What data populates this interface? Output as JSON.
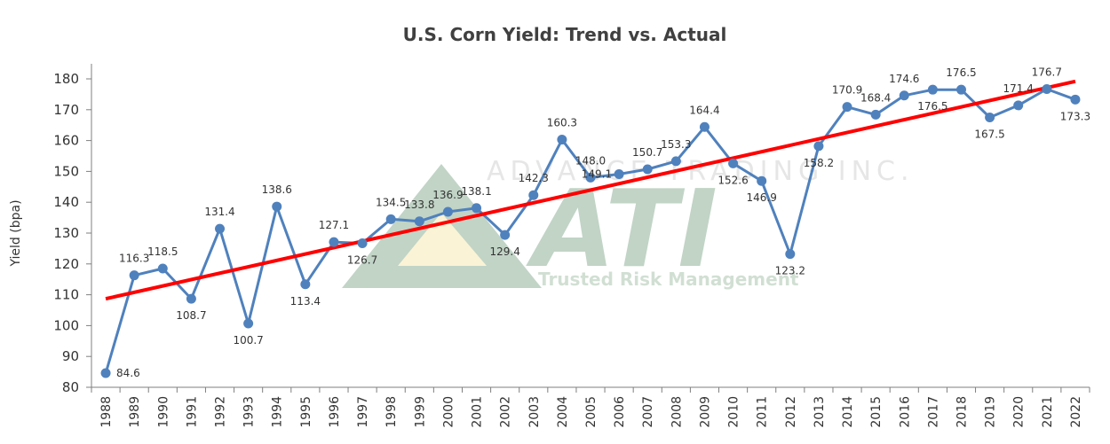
{
  "chart_data": {
    "type": "line",
    "title": "U.S. Corn Yield: Trend vs. Actual",
    "xlabel": "",
    "ylabel": "Yield (bpa)",
    "ylim": [
      80,
      180
    ],
    "yticks": [
      "80",
      "90",
      "100",
      "110",
      "120",
      "130",
      "140",
      "150",
      "160",
      "170",
      "180"
    ],
    "categories": [
      "1988",
      "1989",
      "1990",
      "1991",
      "1992",
      "1993",
      "1994",
      "1995",
      "1996",
      "1997",
      "1998",
      "1999",
      "2000",
      "2001",
      "2002",
      "2003",
      "2004",
      "2005",
      "2006",
      "2007",
      "2008",
      "2009",
      "2010",
      "2011",
      "2012",
      "2013",
      "2014",
      "2015",
      "2016",
      "2017",
      "2018",
      "2019",
      "2020",
      "2021",
      "2022"
    ],
    "series": [
      {
        "name": "Actual",
        "color": "#4f81bd",
        "values": [
          84.6,
          116.3,
          118.5,
          108.7,
          131.4,
          100.7,
          138.6,
          113.4,
          127.1,
          126.7,
          134.5,
          133.8,
          136.9,
          138.1,
          129.4,
          142.3,
          160.3,
          148.0,
          149.1,
          150.7,
          153.3,
          164.4,
          152.6,
          146.9,
          123.2,
          158.2,
          170.9,
          168.4,
          174.6,
          176.5,
          176.5,
          167.5,
          171.4,
          176.7,
          173.3
        ],
        "labels": [
          "84.6",
          "116.3",
          "118.5",
          "108.7",
          "131.4",
          "100.7",
          "138.6",
          "113.4",
          "127.1",
          "126.7",
          "134.5",
          "133.8",
          "136.9",
          "138.1",
          "129.4",
          "142.3",
          "160.3",
          "148.0",
          "149.1",
          "150.7",
          "153.3",
          "164.4",
          "152.6",
          "146.9",
          "123.2",
          "158.2",
          "170.9",
          "168.4",
          "174.6",
          "176.5",
          "176.5",
          "167.5",
          "171.4",
          "176.7",
          "173.3"
        ]
      },
      {
        "name": "Trend",
        "color": "#ff0000",
        "start": 108.7,
        "end": 179.2
      }
    ]
  },
  "watermark": {
    "top_text": "ADVANCE TRADING INC.",
    "logo_text": "ATI",
    "sub_text": "Trusted Risk Management"
  }
}
